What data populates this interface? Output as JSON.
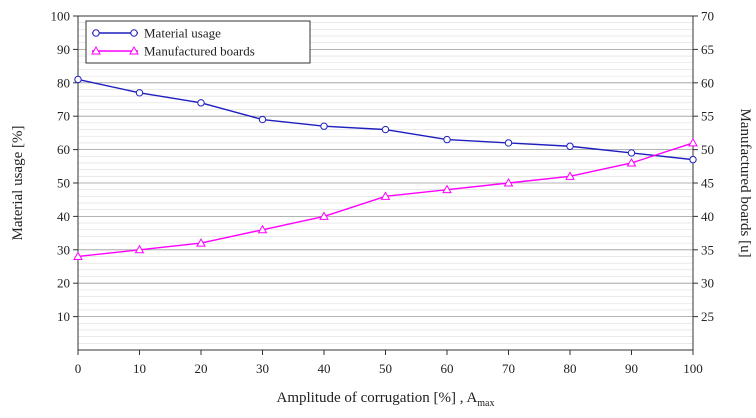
{
  "chart_data": {
    "type": "line",
    "xlabel": "Amplitude of corrugation [%] , A",
    "xlabel_subscript": "max",
    "ylabel_left": "Material usage [%]",
    "ylabel_right": "Manufactured boards [u]",
    "x": [
      0,
      10,
      20,
      30,
      40,
      50,
      60,
      70,
      80,
      90,
      100
    ],
    "xlim": [
      0,
      100
    ],
    "ylim_left": [
      0,
      100
    ],
    "ylim_right": [
      20,
      70
    ],
    "x_ticks": [
      0,
      10,
      20,
      30,
      40,
      50,
      60,
      70,
      80,
      90,
      100
    ],
    "y_ticks_left": [
      10,
      20,
      30,
      40,
      50,
      60,
      70,
      80,
      90,
      100
    ],
    "y_ticks_right": [
      25,
      30,
      35,
      40,
      45,
      50,
      55,
      60,
      65,
      70
    ],
    "grid": true,
    "legend_position": "top-left",
    "series": [
      {
        "name": "Material usage",
        "axis": "left",
        "color": "#1f1fbf",
        "marker": "circle",
        "values": [
          81,
          77,
          74,
          69,
          67,
          66,
          63,
          62,
          61,
          59,
          57
        ]
      },
      {
        "name": "Manufactured boards",
        "axis": "right",
        "color": "#ff00ff",
        "marker": "triangle",
        "values": [
          34,
          35,
          36,
          38,
          40,
          43,
          44,
          45,
          46,
          48,
          51
        ]
      }
    ]
  }
}
